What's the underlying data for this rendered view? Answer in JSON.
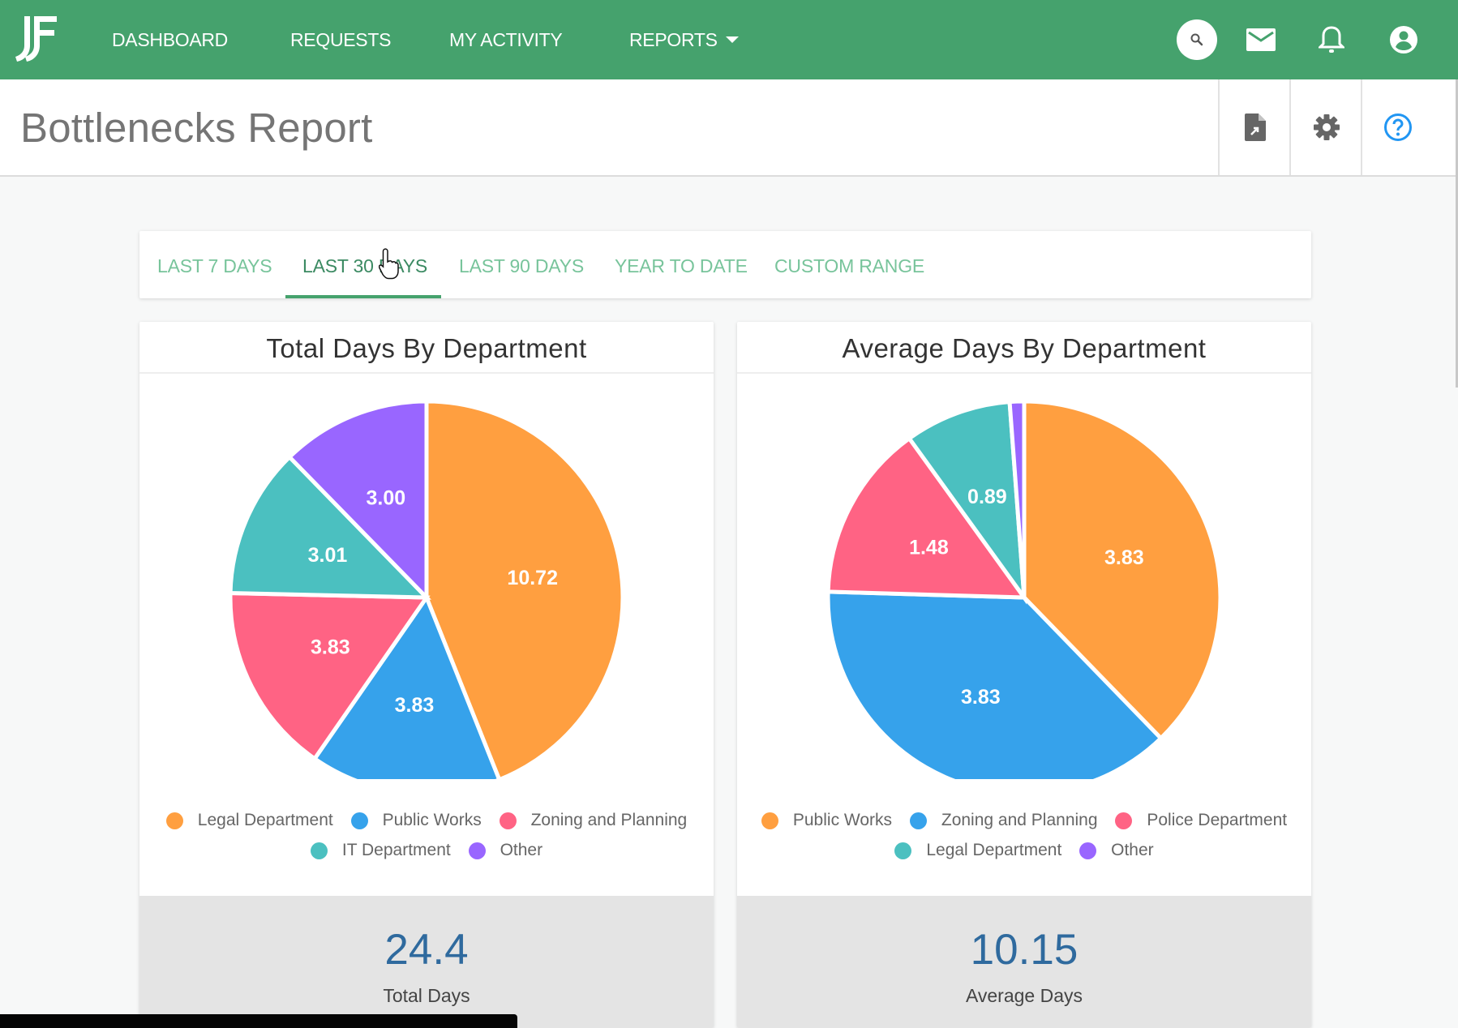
{
  "nav": {
    "logo_text": "JF",
    "items": [
      {
        "label": "DASHBOARD"
      },
      {
        "label": "REQUESTS"
      },
      {
        "label": "MY ACTIVITY"
      },
      {
        "label": "REPORTS"
      }
    ],
    "icons": [
      "search-icon",
      "mail-icon",
      "bell-icon",
      "account-icon"
    ],
    "color": "#45a26d"
  },
  "header": {
    "title": "Bottlenecks Report",
    "actions": [
      "export-file-icon",
      "gear-icon",
      "help-icon"
    ]
  },
  "tabs": {
    "items": [
      {
        "label": "LAST 7 DAYS"
      },
      {
        "label": "LAST 30 DAYS"
      },
      {
        "label": "LAST 90 DAYS"
      },
      {
        "label": "YEAR TO DATE"
      },
      {
        "label": "CUSTOM RANGE"
      }
    ],
    "active_index": 1
  },
  "chart_data": [
    {
      "type": "pie",
      "title": "Total Days By Department",
      "categories": [
        "Legal Department",
        "Public Works",
        "Zoning and Planning",
        "IT Department",
        "Other"
      ],
      "values": [
        10.72,
        3.83,
        3.83,
        3.01,
        3.0
      ],
      "labels": [
        "10.72",
        "3.83",
        "3.83",
        "3.01",
        "3.00"
      ],
      "colors": [
        "#ff9f40",
        "#36a2eb",
        "#ff6384",
        "#4bc0c0",
        "#9966ff"
      ],
      "legend": "bottom",
      "summary": {
        "value": "24.4",
        "label": "Total Days"
      }
    },
    {
      "type": "pie",
      "title": "Average Days By Department",
      "categories": [
        "Public Works",
        "Zoning and Planning",
        "Police Department",
        "Legal Department",
        "Other"
      ],
      "values": [
        3.83,
        3.83,
        1.48,
        0.89,
        0.12
      ],
      "labels": [
        "3.83",
        "3.83",
        "1.48",
        "0.89",
        ""
      ],
      "colors": [
        "#ff9f40",
        "#36a2eb",
        "#ff6384",
        "#4bc0c0",
        "#9966ff"
      ],
      "legend": "bottom",
      "summary": {
        "value": "10.15",
        "label": "Average Days"
      }
    }
  ]
}
